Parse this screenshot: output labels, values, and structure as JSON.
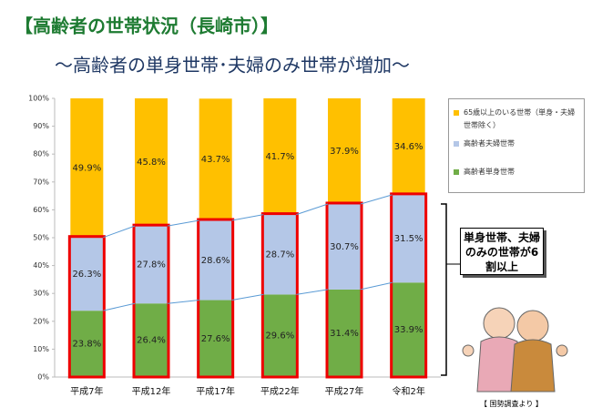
{
  "chart_data": {
    "type": "stacked_bar",
    "title": "【高齢者の世帯状況（長崎市）】",
    "subtitle": "～高齢者の単身世帯･夫婦のみ世帯が増加～",
    "categories": [
      "平成7年",
      "平成12年",
      "平成17年",
      "平成22年",
      "平成27年",
      "令和2年"
    ],
    "series": [
      {
        "name": "高齢者単身世帯",
        "color": "#70ad47",
        "values": [
          23.8,
          26.4,
          27.6,
          29.6,
          31.4,
          33.9
        ],
        "value_labels": [
          "23.8%",
          "26.4%",
          "27.6%",
          "29.6%",
          "31.4%",
          "33.9%"
        ]
      },
      {
        "name": "高齢者夫婦世帯",
        "color": "#b4c7e7",
        "values": [
          26.3,
          27.8,
          28.6,
          28.7,
          30.7,
          31.5
        ],
        "value_labels": [
          "26.3%",
          "27.8%",
          "28.6%",
          "28.7%",
          "30.7%",
          "31.5%"
        ]
      },
      {
        "name": "65歳以上のいる世帯（単身・夫婦世帯除く）",
        "color": "#ffc000",
        "values": [
          49.9,
          45.8,
          43.7,
          41.7,
          37.9,
          34.6
        ],
        "value_labels": [
          "49.9%",
          "45.8%",
          "43.7%",
          "41.7%",
          "37.9%",
          "34.6%"
        ]
      }
    ],
    "ylim": [
      0,
      100
    ],
    "yticks": [
      {
        "value": 0,
        "label": "0%"
      },
      {
        "value": 10,
        "label": "10%"
      },
      {
        "value": 20,
        "label": "20%"
      },
      {
        "value": 30,
        "label": "30%"
      },
      {
        "value": 40,
        "label": "40%"
      },
      {
        "value": 50,
        "label": "50%"
      },
      {
        "value": 60,
        "label": "60%"
      },
      {
        "value": 70,
        "label": "70%"
      },
      {
        "value": 80,
        "label": "80%"
      },
      {
        "value": 90,
        "label": "90%"
      },
      {
        "value": 100,
        "label": "100%"
      }
    ],
    "annotation": "単身世帯、夫婦のみの世帯が6割以上",
    "source": "【 国勢調査より 】"
  }
}
